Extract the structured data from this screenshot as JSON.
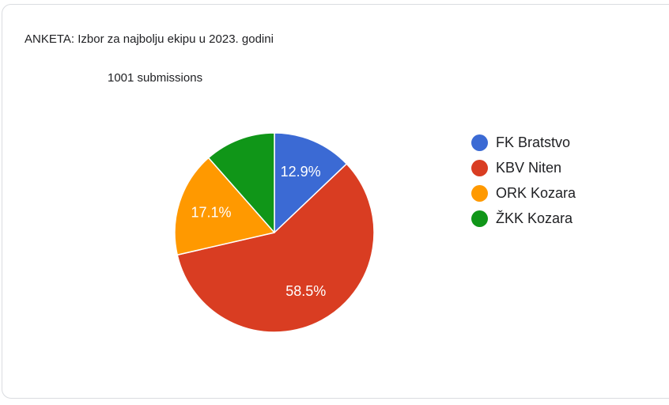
{
  "card": {
    "title": "ANKETA: Izbor za najbolju ekipu u 2023. godini",
    "submissions_label": "1001 submissions"
  },
  "chart_data": {
    "type": "pie",
    "title": "ANKETA: Izbor za najbolju ekipu u 2023. godini",
    "subtitle": "1001 submissions",
    "legend_position": "right",
    "start_angle_deg": 0,
    "direction": "clockwise",
    "slice_label_color": "#ffffff",
    "slices": [
      {
        "name": "FK Bratstvo",
        "value_pct": 12.9,
        "label": "12.9%",
        "color": "#3B6AD4"
      },
      {
        "name": "KBV Niten",
        "value_pct": 58.5,
        "label": "58.5%",
        "color": "#D93D22"
      },
      {
        "name": "ORK Kozara",
        "value_pct": 17.1,
        "label": "17.1%",
        "color": "#FF9900"
      },
      {
        "name": "ŽKK Kozara",
        "value_pct": 11.5,
        "label": "",
        "color": "#109618"
      }
    ]
  }
}
